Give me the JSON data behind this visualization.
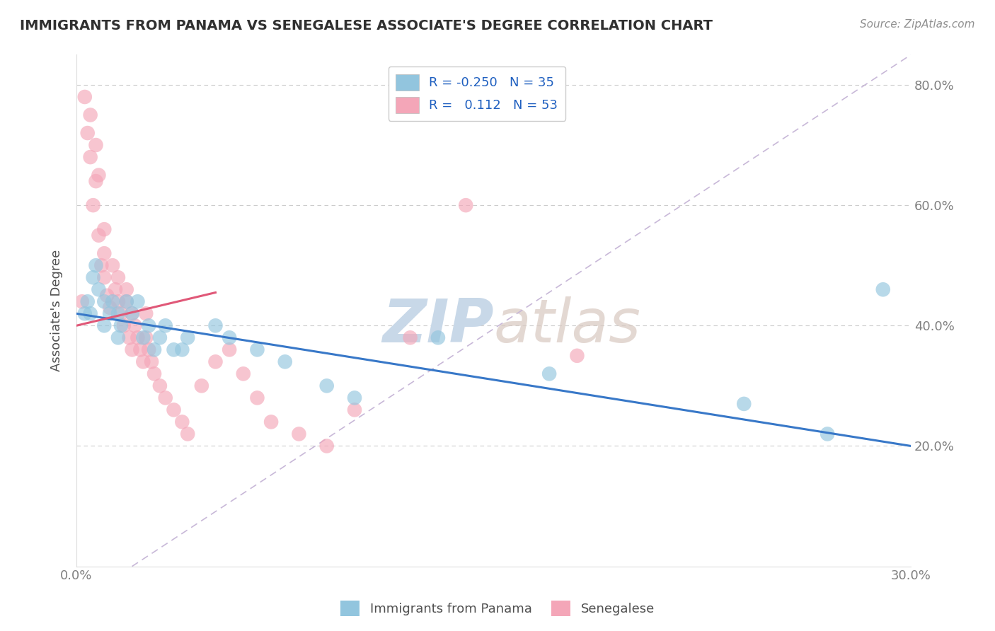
{
  "title": "IMMIGRANTS FROM PANAMA VS SENEGALESE ASSOCIATE'S DEGREE CORRELATION CHART",
  "source": "Source: ZipAtlas.com",
  "ylabel": "Associate's Degree",
  "xlabel_blue": "Immigrants from Panama",
  "xlabel_pink": "Senegalese",
  "x_min": 0.0,
  "x_max": 0.3,
  "y_min": 0.0,
  "y_max": 0.85,
  "blue_color": "#92c5de",
  "pink_color": "#f4a6b8",
  "blue_line_color": "#3878c8",
  "pink_line_color": "#e05878",
  "dashed_line_color": "#c8b8d8",
  "watermark_color": "#c8d8e8",
  "background_color": "#ffffff",
  "title_color": "#303030",
  "axis_label_color": "#505050",
  "tick_label_color": "#808080",
  "legend_R_color": "#2060c0",
  "source_color": "#909090",
  "blue_line_x0": 0.0,
  "blue_line_y0": 0.42,
  "blue_line_x1": 0.3,
  "blue_line_y1": 0.2,
  "pink_line_x0": 0.0,
  "pink_line_y0": 0.4,
  "pink_line_x1": 0.05,
  "pink_line_y1": 0.455,
  "diag_line_x0": 0.02,
  "diag_line_y0": 0.0,
  "diag_line_x1": 0.3,
  "diag_line_y1": 0.85,
  "blue_x": [
    0.003,
    0.004,
    0.005,
    0.006,
    0.007,
    0.008,
    0.01,
    0.01,
    0.012,
    0.013,
    0.015,
    0.015,
    0.016,
    0.018,
    0.02,
    0.022,
    0.024,
    0.026,
    0.028,
    0.03,
    0.032,
    0.035,
    0.038,
    0.04,
    0.05,
    0.055,
    0.065,
    0.075,
    0.09,
    0.1,
    0.13,
    0.17,
    0.24,
    0.27,
    0.29
  ],
  "blue_y": [
    0.42,
    0.44,
    0.42,
    0.48,
    0.5,
    0.46,
    0.44,
    0.4,
    0.42,
    0.44,
    0.42,
    0.38,
    0.4,
    0.44,
    0.42,
    0.44,
    0.38,
    0.4,
    0.36,
    0.38,
    0.4,
    0.36,
    0.36,
    0.38,
    0.4,
    0.38,
    0.36,
    0.34,
    0.3,
    0.28,
    0.38,
    0.32,
    0.27,
    0.22,
    0.46
  ],
  "pink_x": [
    0.002,
    0.003,
    0.004,
    0.005,
    0.005,
    0.006,
    0.007,
    0.007,
    0.008,
    0.008,
    0.009,
    0.01,
    0.01,
    0.01,
    0.011,
    0.012,
    0.013,
    0.014,
    0.015,
    0.015,
    0.016,
    0.017,
    0.018,
    0.018,
    0.019,
    0.02,
    0.02,
    0.021,
    0.022,
    0.023,
    0.024,
    0.025,
    0.025,
    0.026,
    0.027,
    0.028,
    0.03,
    0.032,
    0.035,
    0.038,
    0.04,
    0.045,
    0.05,
    0.055,
    0.06,
    0.065,
    0.07,
    0.08,
    0.09,
    0.1,
    0.12,
    0.14,
    0.18
  ],
  "pink_y": [
    0.44,
    0.78,
    0.72,
    0.68,
    0.75,
    0.6,
    0.64,
    0.7,
    0.55,
    0.65,
    0.5,
    0.48,
    0.52,
    0.56,
    0.45,
    0.43,
    0.5,
    0.46,
    0.44,
    0.48,
    0.42,
    0.4,
    0.44,
    0.46,
    0.38,
    0.42,
    0.36,
    0.4,
    0.38,
    0.36,
    0.34,
    0.38,
    0.42,
    0.36,
    0.34,
    0.32,
    0.3,
    0.28,
    0.26,
    0.24,
    0.22,
    0.3,
    0.34,
    0.36,
    0.32,
    0.28,
    0.24,
    0.22,
    0.2,
    0.26,
    0.38,
    0.6,
    0.35
  ]
}
